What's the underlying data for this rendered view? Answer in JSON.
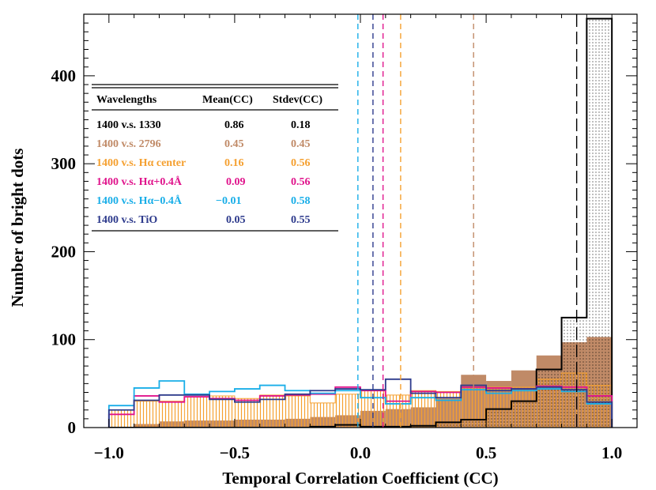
{
  "chart_data": {
    "type": "histogram",
    "xlabel": "Temporal Correlation Coefficient (CC)",
    "ylabel": "Number of bright dots",
    "xlim": [
      -1.1,
      1.1
    ],
    "ylim": [
      0,
      470
    ],
    "x_ticks": [
      -1.0,
      -0.5,
      0.0,
      0.5,
      1.0
    ],
    "x_tick_labels": [
      "−1.0",
      "−0.5",
      "0.0",
      "0.5",
      "1.0"
    ],
    "y_ticks": [
      0,
      100,
      200,
      300,
      400
    ],
    "y_tick_labels": [
      "0",
      "100",
      "200",
      "300",
      "400"
    ],
    "bin_edges": [
      -1.0,
      -0.9,
      -0.8,
      -0.7,
      -0.6,
      -0.5,
      -0.4,
      -0.3,
      -0.2,
      -0.1,
      0.0,
      0.1,
      0.2,
      0.3,
      0.4,
      0.5,
      0.6,
      0.7,
      0.8,
      0.9,
      1.0
    ],
    "series": [
      {
        "name": "1400 v.s. 2796",
        "color": "#C08A67",
        "style": "filled",
        "values": [
          0,
          4,
          7,
          8,
          8,
          9,
          9,
          10,
          12,
          14,
          19,
          21,
          23,
          33,
          60,
          53,
          65,
          82,
          97,
          103
        ]
      },
      {
        "name": "1400 v.s. Hα center",
        "color": "#F5A030",
        "style": "hatched",
        "values": [
          20,
          30,
          30,
          35,
          36,
          33,
          37,
          36,
          28,
          38,
          42,
          37,
          42,
          41,
          47,
          46,
          46,
          55,
          62,
          48
        ]
      },
      {
        "name": "1400 v.s. 1330",
        "color": "#000000",
        "style": "outline-dotted",
        "values": [
          0,
          0,
          0,
          0,
          0,
          0,
          0,
          0,
          1,
          3,
          1,
          1,
          2,
          6,
          9,
          21,
          30,
          66,
          125,
          465
        ]
      },
      {
        "name": "1400 v.s. Hα+0.4Å",
        "color": "#E0148C",
        "style": "outline",
        "values": [
          15,
          36,
          29,
          35,
          33,
          31,
          36,
          37,
          38,
          46,
          42,
          30,
          41,
          40,
          46,
          45,
          44,
          47,
          46,
          36
        ]
      },
      {
        "name": "1400 v.s. Hα−0.4Å",
        "color": "#19AEE8",
        "style": "outline",
        "values": [
          25,
          45,
          53,
          38,
          41,
          44,
          48,
          42,
          39,
          42,
          34,
          27,
          34,
          31,
          43,
          39,
          42,
          44,
          41,
          27
        ]
      },
      {
        "name": "1400 v.s. TiO",
        "color": "#2D3A8C",
        "style": "outline",
        "values": [
          20,
          31,
          37,
          37,
          32,
          29,
          32,
          38,
          42,
          44,
          43,
          55,
          39,
          34,
          48,
          42,
          44,
          46,
          43,
          29
        ]
      }
    ],
    "mean_lines": [
      {
        "color": "#000000",
        "x": 0.86,
        "dash": "long"
      },
      {
        "color": "#C08A67",
        "x": 0.45,
        "dash": "short"
      },
      {
        "color": "#F5A030",
        "x": 0.16,
        "dash": "short"
      },
      {
        "color": "#E0148C",
        "x": 0.09,
        "dash": "short"
      },
      {
        "color": "#19AEE8",
        "x": -0.01,
        "dash": "short"
      },
      {
        "color": "#2D3A8C",
        "x": 0.05,
        "dash": "short"
      }
    ],
    "table": {
      "headers": [
        "Wavelengths",
        "Mean(CC)",
        "Stdev(CC)"
      ],
      "rows": [
        {
          "label": "1400 v.s. 1330",
          "mean": "0.86",
          "stdev": "0.18",
          "color": "#000000"
        },
        {
          "label": "1400 v.s. 2796",
          "mean": "0.45",
          "stdev": "0.45",
          "color": "#C08A67"
        },
        {
          "label": "1400 v.s. Hα center",
          "mean": "0.16",
          "stdev": "0.56",
          "color": "#F5A030"
        },
        {
          "label": "1400 v.s. Hα+0.4Å",
          "mean": "0.09",
          "stdev": "0.56",
          "color": "#E0148C"
        },
        {
          "label": "1400 v.s. Hα−0.4Å",
          "mean": "−0.01",
          "stdev": "0.58",
          "color": "#19AEE8"
        },
        {
          "label": "1400 v.s. TiO",
          "mean": "0.05",
          "stdev": "0.55",
          "color": "#2D3A8C"
        }
      ]
    }
  }
}
